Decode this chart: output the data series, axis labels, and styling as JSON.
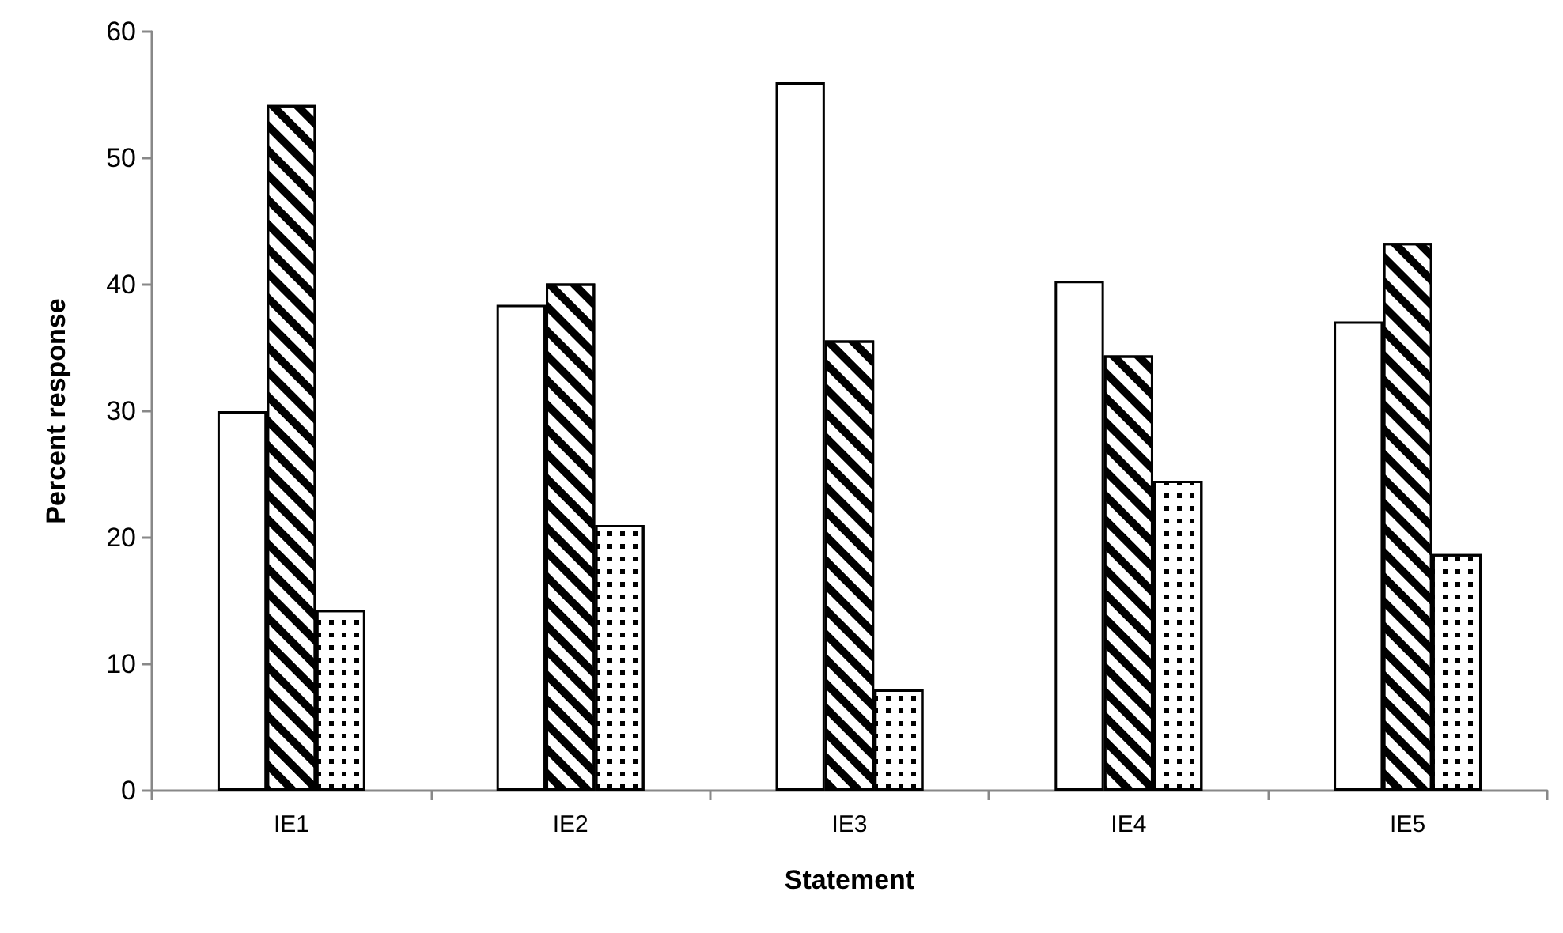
{
  "chart_data": {
    "type": "bar",
    "xlabel": "Statement",
    "ylabel": "Percent response",
    "categories": [
      "IE1",
      "IE2",
      "IE3",
      "IE4",
      "IE5"
    ],
    "series": [
      {
        "color": "#ffffff",
        "values": [
          30.0,
          38.4,
          56.0,
          40.3,
          37.1
        ]
      },
      {
        "color": "#ffffff",
        "values": [
          54.2,
          40.1,
          35.6,
          34.4,
          43.3
        ]
      },
      {
        "color": "#ffffff",
        "values": [
          14.3,
          21.0,
          8.0,
          24.5,
          18.7
        ]
      }
    ],
    "ylim": [
      0,
      60
    ],
    "yticks": [
      0,
      10,
      20,
      30,
      40,
      50,
      60
    ],
    "grid": false
  }
}
